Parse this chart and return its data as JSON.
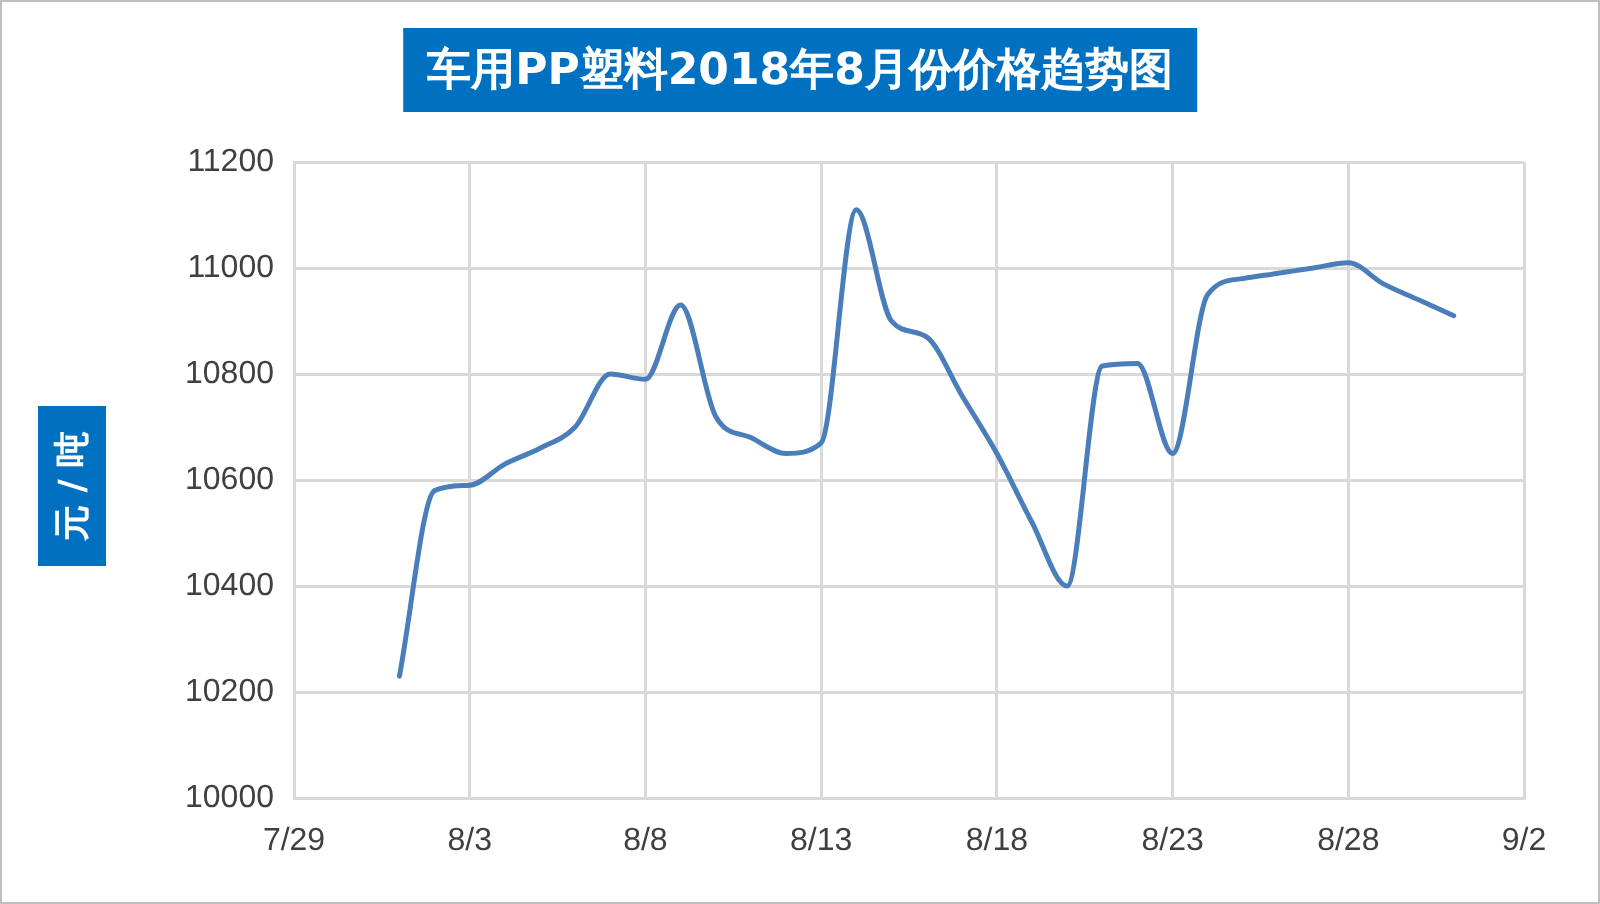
{
  "chart_data": {
    "type": "line",
    "title": "车用PP塑料2018年8月份价格趋势图",
    "ylabel": "元 / 吨",
    "x": [
      "2018-08-01",
      "2018-08-02",
      "2018-08-03",
      "2018-08-04",
      "2018-08-05",
      "2018-08-06",
      "2018-08-07",
      "2018-08-08",
      "2018-08-09",
      "2018-08-10",
      "2018-08-11",
      "2018-08-12",
      "2018-08-13",
      "2018-08-14",
      "2018-08-15",
      "2018-08-16",
      "2018-08-17",
      "2018-08-18",
      "2018-08-19",
      "2018-08-20",
      "2018-08-21",
      "2018-08-22",
      "2018-08-23",
      "2018-08-24",
      "2018-08-25",
      "2018-08-26",
      "2018-08-27",
      "2018-08-28",
      "2018-08-29",
      "2018-08-30",
      "2018-08-31"
    ],
    "series": [
      {
        "color": "#4a7ebb",
        "values": [
          10230,
          10580,
          10590,
          10630,
          10660,
          10700,
          10800,
          10790,
          10930,
          10720,
          10680,
          10650,
          10670,
          11110,
          10900,
          10870,
          10760,
          10650,
          10520,
          10400,
          10815,
          10820,
          10650,
          10950,
          10980,
          10990,
          11000,
          11010,
          10970,
          10940,
          10910
        ]
      }
    ],
    "xlim": [
      "2018-07-29",
      "2018-09-02"
    ],
    "xticks": [
      {
        "value": "2018-07-29",
        "label": "7/29"
      },
      {
        "value": "2018-08-03",
        "label": "8/3"
      },
      {
        "value": "2018-08-08",
        "label": "8/8"
      },
      {
        "value": "2018-08-13",
        "label": "8/13"
      },
      {
        "value": "2018-08-18",
        "label": "8/18"
      },
      {
        "value": "2018-08-23",
        "label": "8/23"
      },
      {
        "value": "2018-08-28",
        "label": "8/28"
      },
      {
        "value": "2018-09-02",
        "label": "9/2"
      }
    ],
    "ylim": [
      10000,
      11200
    ],
    "yticks": [
      10000,
      10200,
      10400,
      10600,
      10800,
      11000,
      11200
    ],
    "grid": true,
    "legend": false,
    "marker": "none",
    "line_style": "solid"
  }
}
